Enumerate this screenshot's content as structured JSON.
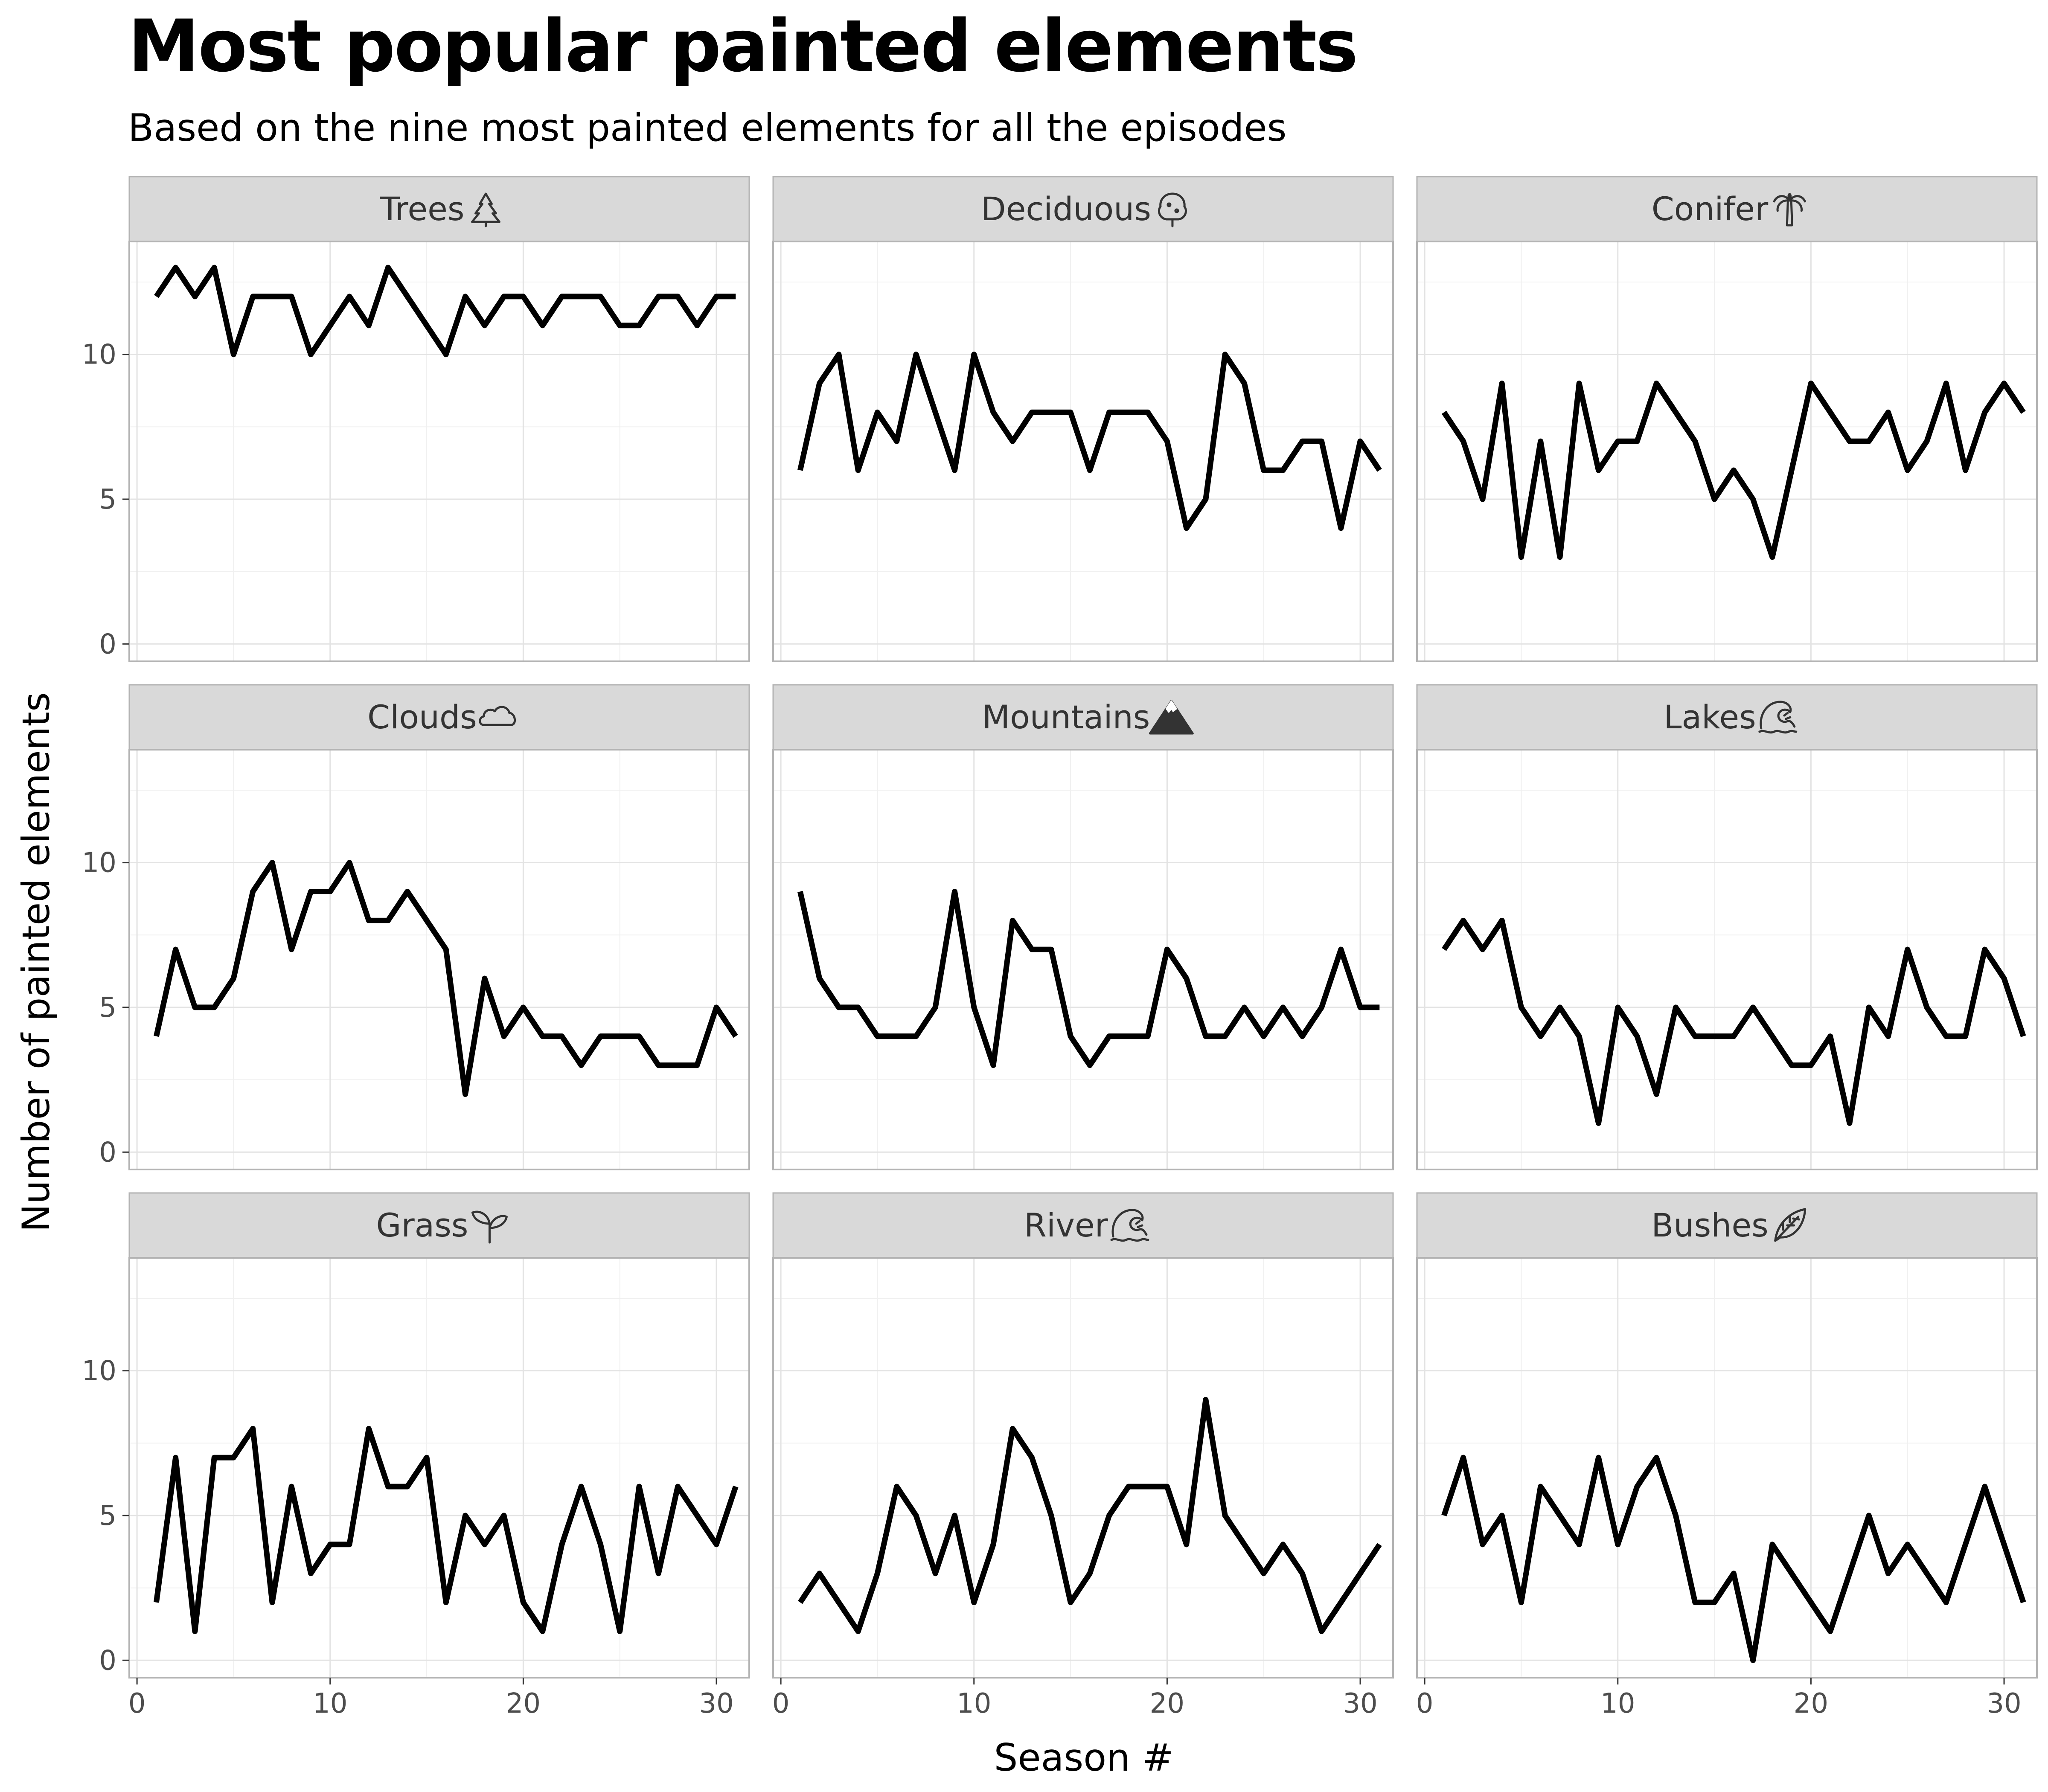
{
  "header": {
    "title": "Most popular painted elements",
    "subtitle": "Based on the nine most painted elements for all the episodes"
  },
  "chart_data": {
    "type": "line",
    "title": "Most popular painted elements",
    "subtitle": "Based on the nine most painted elements for all the episodes",
    "xlabel": "Season #",
    "ylabel": "Number of painted elements",
    "xlim": [
      0,
      31
    ],
    "ylim": [
      0,
      13
    ],
    "x_ticks": [
      0,
      10,
      20,
      30
    ],
    "y_ticks": [
      0,
      5,
      10
    ],
    "grid": true,
    "legend": "none",
    "line_color": "#000000",
    "strip_color": "#d9d9d9",
    "panels": [
      {
        "name": "Trees",
        "icon": "tree-icon",
        "values": [
          12,
          13,
          12,
          13,
          10,
          12,
          12,
          12,
          10,
          11,
          12,
          11,
          13,
          12,
          11,
          10,
          12,
          11,
          12,
          12,
          11,
          12,
          12,
          12,
          11,
          11,
          12,
          12,
          11,
          12,
          12
        ]
      },
      {
        "name": "Deciduous",
        "icon": "deciduous-tree-icon",
        "values": [
          6,
          9,
          10,
          6,
          8,
          7,
          10,
          8,
          6,
          10,
          8,
          7,
          8,
          8,
          8,
          6,
          8,
          8,
          8,
          7,
          4,
          5,
          10,
          9,
          6,
          6,
          7,
          7,
          4,
          7,
          6
        ]
      },
      {
        "name": "Conifer",
        "icon": "palm-tree-icon",
        "values": [
          8,
          7,
          5,
          9,
          3,
          7,
          3,
          9,
          6,
          7,
          7,
          9,
          8,
          7,
          5,
          6,
          5,
          3,
          6,
          9,
          8,
          7,
          7,
          8,
          6,
          7,
          9,
          6,
          8,
          9,
          8
        ]
      },
      {
        "name": "Clouds",
        "icon": "cloud-icon",
        "values": [
          4,
          7,
          5,
          5,
          6,
          9,
          10,
          7,
          9,
          9,
          10,
          8,
          8,
          9,
          8,
          7,
          2,
          6,
          4,
          5,
          4,
          4,
          3,
          4,
          4,
          4,
          3,
          3,
          3,
          5,
          4
        ]
      },
      {
        "name": "Mountains",
        "icon": "mountain-icon",
        "values": [
          9,
          6,
          5,
          5,
          4,
          4,
          4,
          5,
          9,
          5,
          3,
          8,
          7,
          7,
          4,
          3,
          4,
          4,
          4,
          7,
          6,
          4,
          4,
          5,
          4,
          5,
          4,
          5,
          7,
          5,
          5
        ]
      },
      {
        "name": "Lakes",
        "icon": "wave-icon",
        "values": [
          7,
          8,
          7,
          8,
          5,
          4,
          5,
          4,
          1,
          5,
          4,
          2,
          5,
          4,
          4,
          4,
          5,
          4,
          3,
          3,
          4,
          1,
          5,
          4,
          7,
          5,
          4,
          4,
          7,
          6,
          4
        ]
      },
      {
        "name": "Grass",
        "icon": "seedling-icon",
        "values": [
          2,
          7,
          1,
          7,
          7,
          8,
          2,
          6,
          3,
          4,
          4,
          8,
          6,
          6,
          7,
          2,
          5,
          4,
          5,
          2,
          1,
          4,
          6,
          4,
          1,
          6,
          3,
          6,
          5,
          4,
          6
        ]
      },
      {
        "name": "River",
        "icon": "wave-icon",
        "values": [
          2,
          3,
          2,
          1,
          3,
          6,
          5,
          3,
          5,
          2,
          4,
          8,
          7,
          5,
          2,
          3,
          5,
          6,
          6,
          6,
          4,
          9,
          5,
          4,
          3,
          4,
          3,
          1,
          2,
          3,
          4
        ]
      },
      {
        "name": "Bushes",
        "icon": "leaf-icon",
        "values": [
          5,
          7,
          4,
          5,
          2,
          6,
          5,
          4,
          7,
          4,
          6,
          7,
          5,
          2,
          2,
          3,
          0,
          4,
          3,
          2,
          1,
          3,
          5,
          3,
          4,
          3,
          2,
          4,
          6,
          4,
          2
        ]
      }
    ]
  }
}
